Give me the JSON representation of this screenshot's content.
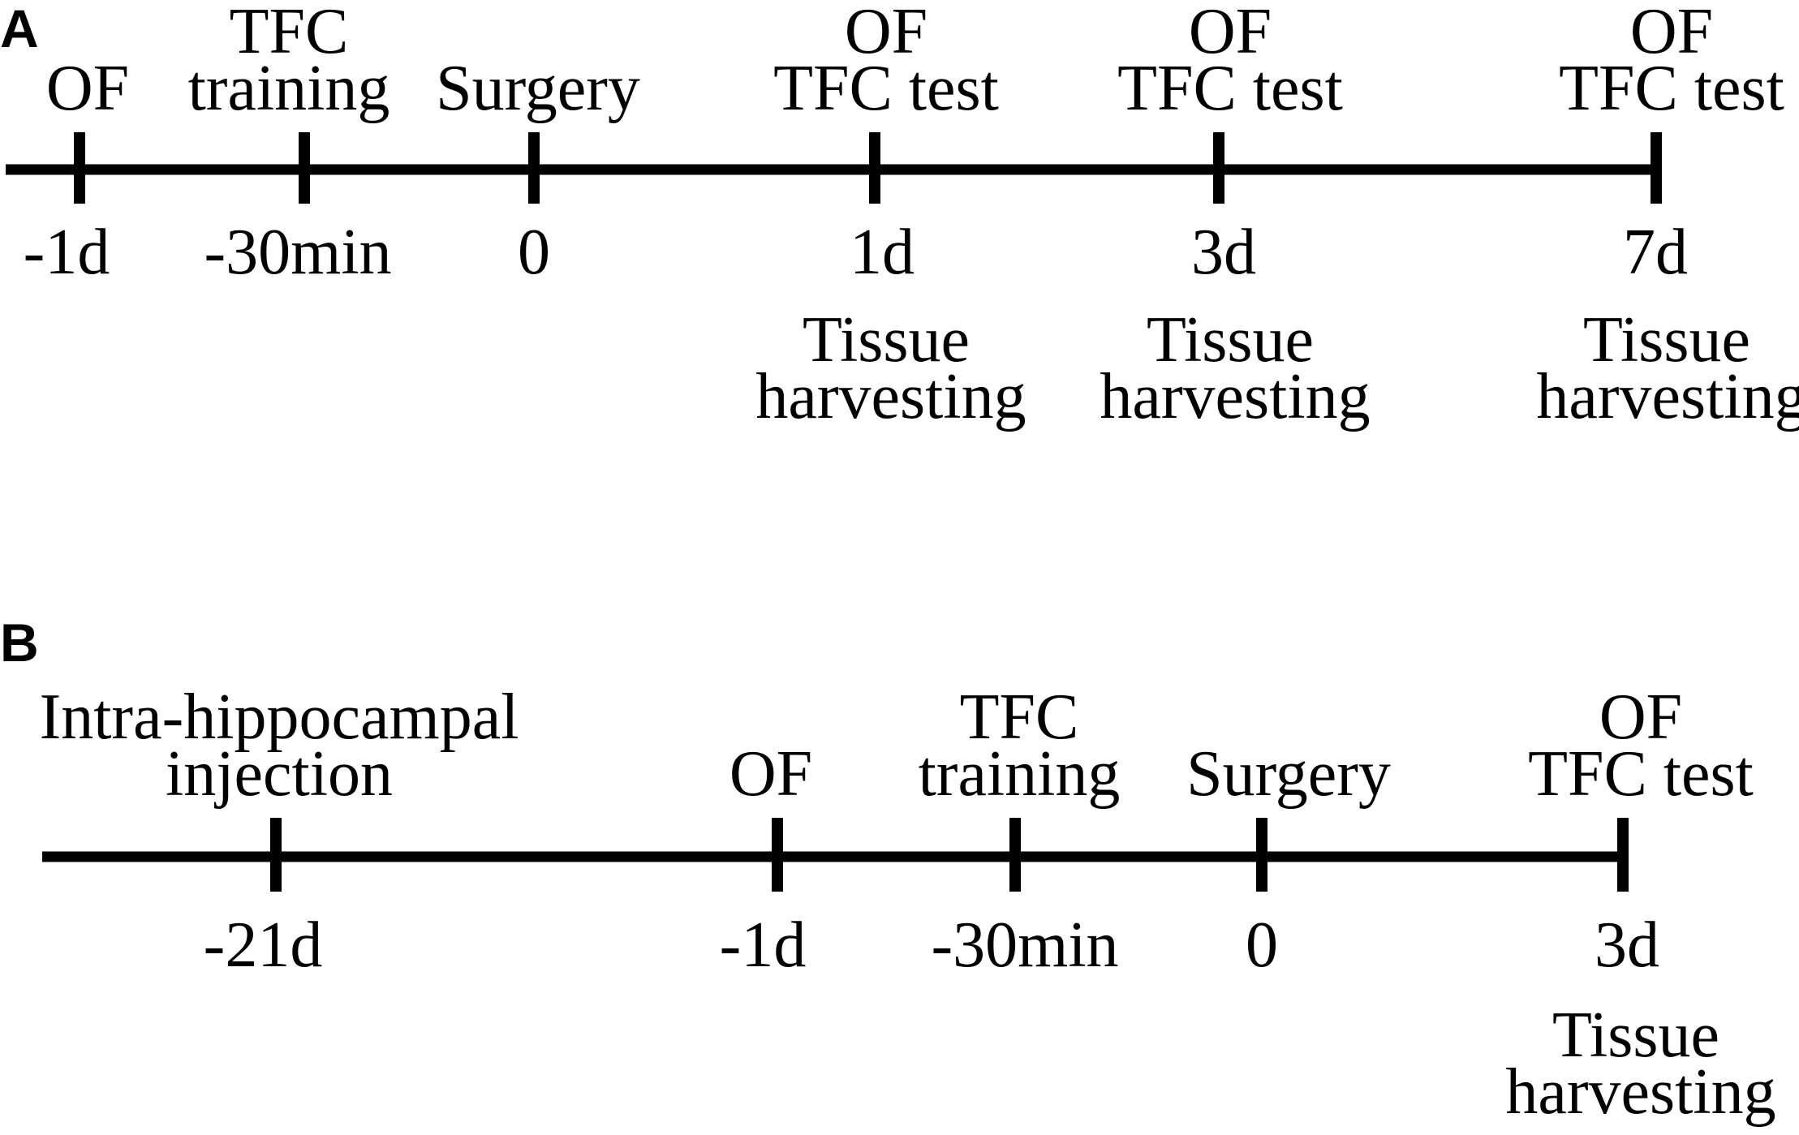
{
  "panels": [
    {
      "letter": "A",
      "events": [
        {
          "above": [
            "OF"
          ],
          "time": "-1d",
          "below": []
        },
        {
          "above": [
            "TFC",
            "training"
          ],
          "time": "-30min",
          "below": []
        },
        {
          "above": [
            "Surgery"
          ],
          "time": "0",
          "below": []
        },
        {
          "above": [
            "OF",
            "TFC test"
          ],
          "time": "1d",
          "below": [
            "Tissue",
            "harvesting"
          ]
        },
        {
          "above": [
            "OF",
            "TFC test"
          ],
          "time": "3d",
          "below": [
            "Tissue",
            "harvesting"
          ]
        },
        {
          "above": [
            "OF",
            "TFC test"
          ],
          "time": "7d",
          "below": [
            "Tissue",
            "harvesting"
          ]
        }
      ]
    },
    {
      "letter": "B",
      "events": [
        {
          "above": [
            "Intra-hippocampal",
            "injection"
          ],
          "time": "-21d",
          "below": []
        },
        {
          "above": [
            "OF"
          ],
          "time": "-1d",
          "below": []
        },
        {
          "above": [
            "TFC",
            "training"
          ],
          "time": "-30min",
          "below": []
        },
        {
          "above": [
            "Surgery"
          ],
          "time": "0",
          "below": []
        },
        {
          "above": [
            "OF",
            "TFC test"
          ],
          "time": "3d",
          "below": [
            "Tissue",
            "harvesting"
          ]
        }
      ]
    }
  ]
}
